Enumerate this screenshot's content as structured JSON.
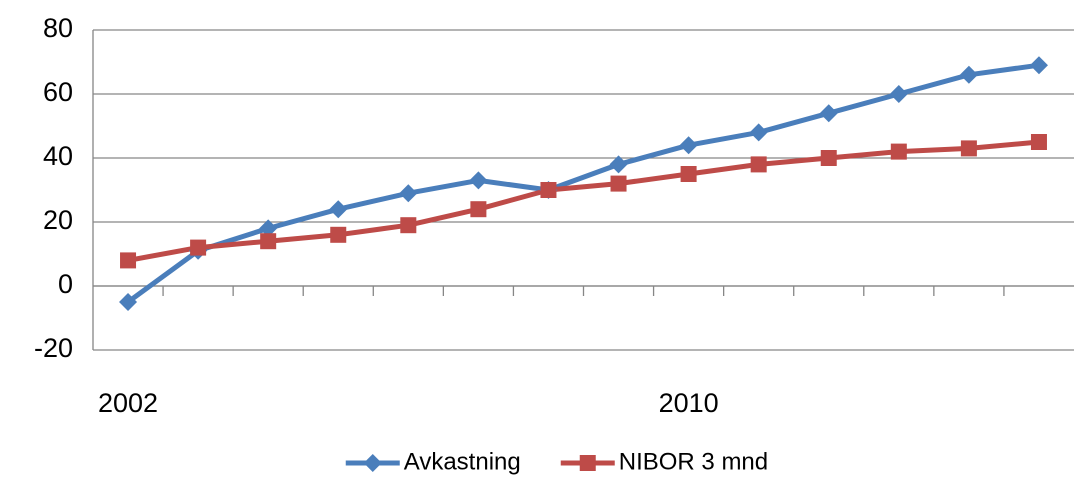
{
  "chart_data": {
    "type": "line",
    "categories": [
      "2002",
      null,
      null,
      null,
      null,
      null,
      null,
      null,
      "2010",
      null,
      null,
      null,
      null,
      null
    ],
    "series": [
      {
        "name": "Avkastning",
        "color": "#4a7ebb",
        "marker": "diamond",
        "values": [
          -5,
          11,
          18,
          24,
          29,
          33,
          30,
          38,
          44,
          48,
          54,
          60,
          66,
          69
        ]
      },
      {
        "name": "NIBOR 3 mnd",
        "color": "#be4b48",
        "marker": "square",
        "values": [
          8,
          12,
          14,
          16,
          19,
          24,
          30,
          32,
          35,
          38,
          40,
          42,
          43,
          45
        ]
      }
    ],
    "ylim": [
      -20,
      80
    ],
    "yticks": [
      -20,
      0,
      20,
      40,
      60,
      80
    ],
    "grid": true,
    "legend": "bottom"
  }
}
